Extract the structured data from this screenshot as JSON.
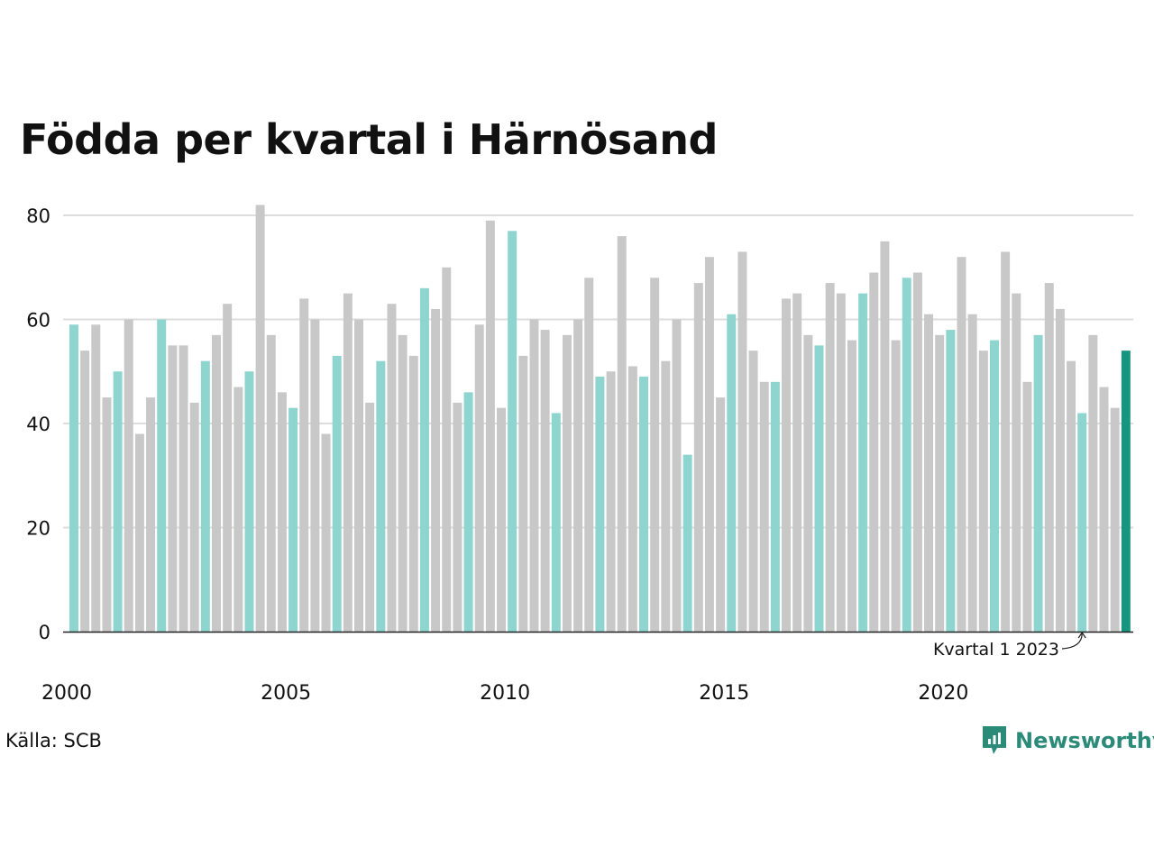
{
  "title": "Födda per kvartal i Härnösand",
  "source": "Källa: SCB",
  "brand": "Newsworthy",
  "colors": {
    "highlight_q1": "#8ed5cf",
    "other": "#c8c8c8",
    "latest": "#16967f",
    "grid": "#dddddd",
    "brand": "#2b8a78"
  },
  "chart_data": {
    "type": "bar",
    "title": "Födda per kvartal i Härnösand",
    "xlabel": "",
    "ylabel": "",
    "ylim": [
      0,
      82
    ],
    "yticks": [
      0,
      20,
      40,
      60,
      80
    ],
    "xtick_labels": [
      "2000",
      "2005",
      "2010",
      "2015",
      "2020"
    ],
    "xtick_positions": [
      2000,
      2005,
      2010,
      2015,
      2020
    ],
    "grid": "horizontal",
    "first_quarter": "2000-Q1",
    "values": [
      59,
      54,
      59,
      45,
      50,
      60,
      38,
      45,
      60,
      55,
      55,
      44,
      52,
      57,
      63,
      47,
      50,
      82,
      57,
      46,
      43,
      64,
      60,
      38,
      53,
      65,
      60,
      44,
      52,
      63,
      57,
      53,
      66,
      62,
      70,
      44,
      46,
      59,
      79,
      43,
      77,
      53,
      60,
      58,
      42,
      57,
      60,
      68,
      49,
      50,
      76,
      51,
      49,
      68,
      52,
      60,
      34,
      67,
      72,
      45,
      61,
      73,
      54,
      48,
      48,
      64,
      65,
      57,
      55,
      67,
      65,
      56,
      65,
      69,
      75,
      56,
      68,
      69,
      61,
      57,
      58,
      72,
      61,
      54,
      56,
      73,
      65,
      48,
      57,
      67,
      62,
      52,
      42,
      57,
      47,
      43,
      54
    ],
    "annotation": {
      "text": "Kvartal 1 2023",
      "target_index": 92
    }
  }
}
